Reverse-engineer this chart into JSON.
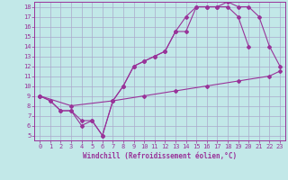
{
  "title": "",
  "xlabel": "Windchill (Refroidissement éolien,°C)",
  "ylabel": "",
  "background_color": "#c2e8e8",
  "grid_color": "#aaaacc",
  "line_color": "#993399",
  "marker_color": "#993399",
  "xlim": [
    -0.5,
    23.5
  ],
  "ylim": [
    4.5,
    18.5
  ],
  "xticks": [
    0,
    1,
    2,
    3,
    4,
    5,
    6,
    7,
    8,
    9,
    10,
    11,
    12,
    13,
    14,
    15,
    16,
    17,
    18,
    19,
    20,
    21,
    22,
    23
  ],
  "yticks": [
    5,
    6,
    7,
    8,
    9,
    10,
    11,
    12,
    13,
    14,
    15,
    16,
    17,
    18
  ],
  "line1_x": [
    0,
    1,
    2,
    3,
    4,
    5,
    6,
    7,
    8,
    9,
    10,
    11,
    12,
    13,
    14,
    15,
    16,
    17,
    18,
    19,
    20,
    21,
    22,
    23
  ],
  "line1_y": [
    9,
    8.5,
    7.5,
    7.5,
    6,
    6.5,
    5,
    8.5,
    10,
    12,
    12.5,
    13,
    13.5,
    15.5,
    15.5,
    18,
    18,
    18,
    18.5,
    18,
    18,
    17,
    14,
    12
  ],
  "line2_x": [
    0,
    1,
    2,
    3,
    4,
    5,
    6,
    7,
    8,
    9,
    10,
    11,
    12,
    13,
    14,
    15,
    16,
    17,
    18,
    19,
    20
  ],
  "line2_y": [
    9,
    8.5,
    7.5,
    7.5,
    6.5,
    6.5,
    5,
    8.5,
    10,
    12,
    12.5,
    13,
    13.5,
    15.5,
    17,
    18,
    18,
    18,
    18,
    17,
    14
  ],
  "line3_x": [
    0,
    3,
    7,
    10,
    13,
    16,
    19,
    22,
    23
  ],
  "line3_y": [
    9,
    8.0,
    8.5,
    9.0,
    9.5,
    10.0,
    10.5,
    11.0,
    11.5
  ],
  "font_color": "#993399",
  "tick_fontsize": 5,
  "xlabel_fontsize": 5.5,
  "font_family": "monospace"
}
